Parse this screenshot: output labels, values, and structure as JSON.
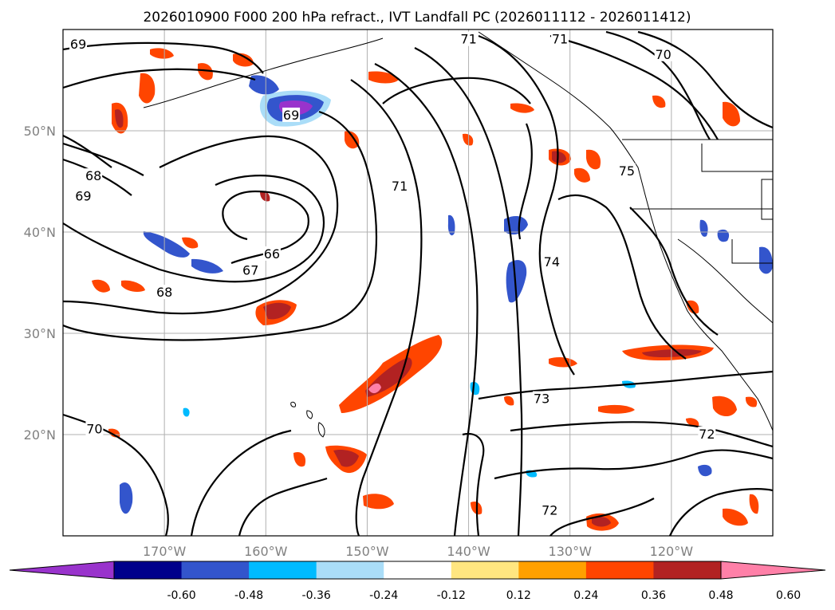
{
  "title": "2026010900 F000 200 hPa refract., IVT Landfall PC (2026011112 - 2026011412)",
  "map": {
    "lon_min": -180,
    "lon_max": -110,
    "lat_min": 10,
    "lat_max": 60,
    "lon_ticks": [
      -170,
      -160,
      -150,
      -140,
      -130,
      -120
    ],
    "lon_tick_labels": [
      "170°W",
      "160°W",
      "150°W",
      "140°W",
      "130°W",
      "120°W"
    ],
    "lat_ticks": [
      20,
      30,
      40,
      50
    ],
    "lat_tick_labels": [
      "20°N",
      "30°N",
      "40°N",
      "50°N"
    ],
    "grid": true
  },
  "contour_labels": [
    {
      "text": "69",
      "lon": -178.5,
      "lat": 58.5
    },
    {
      "text": "71",
      "lon": -140.0,
      "lat": 59.0
    },
    {
      "text": "71",
      "lon": -131.0,
      "lat": 59.0
    },
    {
      "text": "70",
      "lon": -120.8,
      "lat": 57.5
    },
    {
      "text": "69",
      "lon": -157.5,
      "lat": 51.5
    },
    {
      "text": "68",
      "lon": -177.0,
      "lat": 45.5
    },
    {
      "text": "69",
      "lon": -178.0,
      "lat": 43.5
    },
    {
      "text": "71",
      "lon": -146.8,
      "lat": 44.5
    },
    {
      "text": "75",
      "lon": -124.4,
      "lat": 46.0
    },
    {
      "text": "66",
      "lon": -159.4,
      "lat": 37.8
    },
    {
      "text": "67",
      "lon": -161.5,
      "lat": 36.2
    },
    {
      "text": "68",
      "lon": -170.0,
      "lat": 34.0
    },
    {
      "text": "74",
      "lon": -131.8,
      "lat": 37.0
    },
    {
      "text": "73",
      "lon": -132.8,
      "lat": 23.5
    },
    {
      "text": "70",
      "lon": -176.9,
      "lat": 20.5
    },
    {
      "text": "72",
      "lon": -116.5,
      "lat": 20.0
    },
    {
      "text": "72",
      "lon": -132.0,
      "lat": 12.5
    }
  ],
  "colorbar": {
    "ticks": [
      "-0.60",
      "-0.48",
      "-0.36",
      "-0.24",
      "-0.12",
      "0.12",
      "0.24",
      "0.36",
      "0.48",
      "0.60"
    ],
    "colors": [
      "#9933cc",
      "#00008b",
      "#3355cc",
      "#00bbff",
      "#aaddf8",
      "#ffffff",
      "#ffe680",
      "#ffa000",
      "#ff4500",
      "#b22222",
      "#ff80a8"
    ],
    "extend": "both"
  },
  "colors": {
    "contour": "#000000",
    "coastline": "#000000",
    "grid": "#b0b0b0"
  }
}
